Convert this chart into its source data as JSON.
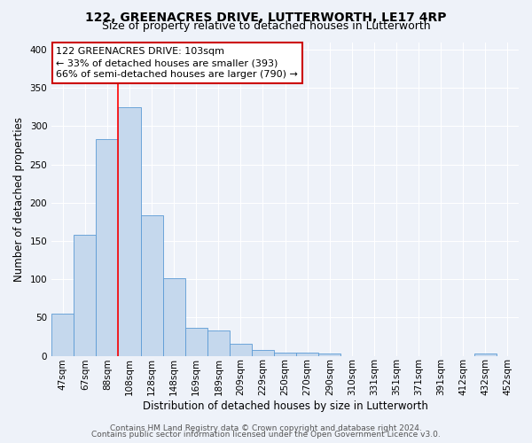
{
  "title": "122, GREENACRES DRIVE, LUTTERWORTH, LE17 4RP",
  "subtitle": "Size of property relative to detached houses in Lutterworth",
  "xlabel": "Distribution of detached houses by size in Lutterworth",
  "ylabel": "Number of detached properties",
  "bin_labels": [
    "47sqm",
    "67sqm",
    "88sqm",
    "108sqm",
    "128sqm",
    "148sqm",
    "169sqm",
    "189sqm",
    "209sqm",
    "229sqm",
    "250sqm",
    "270sqm",
    "290sqm",
    "310sqm",
    "331sqm",
    "351sqm",
    "371sqm",
    "391sqm",
    "412sqm",
    "432sqm",
    "452sqm"
  ],
  "bar_heights": [
    55,
    158,
    283,
    325,
    184,
    101,
    37,
    33,
    16,
    7,
    4,
    4,
    3,
    0,
    0,
    0,
    0,
    0,
    0,
    3,
    0
  ],
  "bar_color": "#c5d8ed",
  "bar_edge_color": "#5b9bd5",
  "ylim": [
    0,
    410
  ],
  "yticks": [
    0,
    50,
    100,
    150,
    200,
    250,
    300,
    350,
    400
  ],
  "red_line_x": 3,
  "annotation_title": "122 GREENACRES DRIVE: 103sqm",
  "annotation_line1": "← 33% of detached houses are smaller (393)",
  "annotation_line2": "66% of semi-detached houses are larger (790) →",
  "annotation_box_color": "#ffffff",
  "annotation_box_edge_color": "#cc0000",
  "footer_line1": "Contains HM Land Registry data © Crown copyright and database right 2024.",
  "footer_line2": "Contains public sector information licensed under the Open Government Licence v3.0.",
  "background_color": "#eef2f9",
  "grid_color": "#ffffff",
  "title_fontsize": 10,
  "subtitle_fontsize": 9,
  "axis_label_fontsize": 8.5,
  "tick_fontsize": 7.5,
  "annotation_fontsize": 8,
  "footer_fontsize": 6.5
}
